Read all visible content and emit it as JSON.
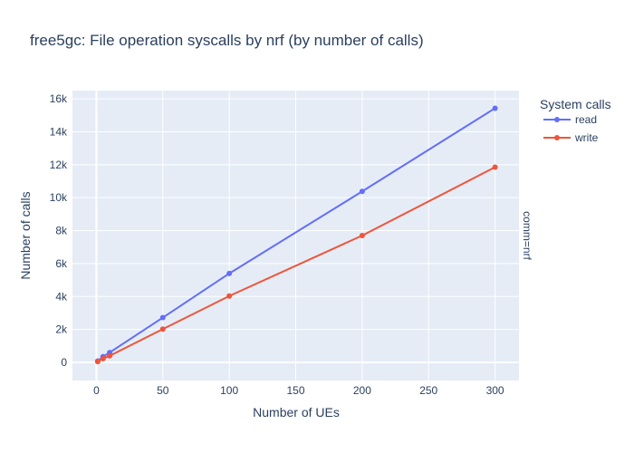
{
  "chart_data": {
    "type": "line",
    "title": "free5gc: File operation syscalls by nrf (by number of calls)",
    "xlabel": "Number of UEs",
    "ylabel": "Number of calls",
    "legend_title": "System calls",
    "legend_position": "top-right",
    "facet_label": "comm=nrf",
    "x": [
      1,
      5,
      10,
      50,
      100,
      200,
      300
    ],
    "xlim": [
      -18,
      318
    ],
    "ylim": [
      -1100,
      16500
    ],
    "x_ticks": [
      0,
      50,
      100,
      150,
      200,
      250,
      300
    ],
    "x_tick_labels": [
      "0",
      "50",
      "100",
      "150",
      "200",
      "250",
      "300"
    ],
    "y_ticks": [
      0,
      2000,
      4000,
      6000,
      8000,
      10000,
      12000,
      14000,
      16000
    ],
    "y_tick_labels": [
      "0",
      "2k",
      "4k",
      "6k",
      "8k",
      "10k",
      "12k",
      "14k",
      "16k"
    ],
    "grid": true,
    "plot_background": "#e5ecf6",
    "series": [
      {
        "name": "read",
        "color": "#636efa",
        "values": [
          80,
          350,
          600,
          2720,
          5400,
          10380,
          15430
        ]
      },
      {
        "name": "write",
        "color": "#ef553b",
        "values": [
          50,
          230,
          400,
          2020,
          4030,
          7700,
          11850
        ]
      }
    ]
  }
}
